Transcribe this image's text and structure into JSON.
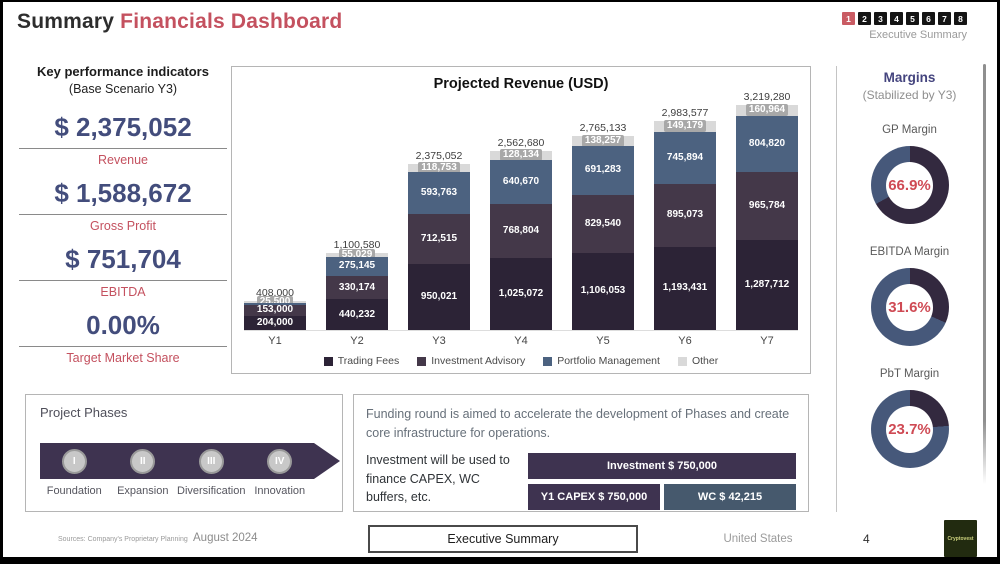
{
  "header": {
    "title_black": "Summary",
    "title_red": "Financials Dashboard",
    "pages": [
      "1",
      "2",
      "3",
      "4",
      "5",
      "6",
      "7",
      "8"
    ],
    "active_page": "1",
    "pages_caption": "Executive Summary"
  },
  "kpi": {
    "title": "Key performance indicators",
    "subtitle": "(Base Scenario Y3)",
    "items": [
      {
        "value": "$ 2,375,052",
        "label": "Revenue"
      },
      {
        "value": "$ 1,588,672",
        "label": "Gross Profit"
      },
      {
        "value": "$ 751,704",
        "label": "EBITDA"
      },
      {
        "value": "0.00%",
        "label": "Target Market Share"
      }
    ]
  },
  "chart_data": {
    "type": "bar",
    "stacked": true,
    "title": "Projected Revenue (USD)",
    "categories": [
      "Y1",
      "Y2",
      "Y3",
      "Y4",
      "Y5",
      "Y6",
      "Y7"
    ],
    "series": [
      {
        "name": "Trading Fees",
        "color": "#2c2336",
        "values": [
          204000,
          440232,
          950021,
          1025072,
          1106053,
          1193431,
          1287712
        ]
      },
      {
        "name": "Investment Advisory",
        "color": "#443849",
        "values": [
          153000,
          330174,
          712515,
          768804,
          829540,
          895073,
          965784
        ]
      },
      {
        "name": "Portfolio Management",
        "color": "#4c6280",
        "values": [
          25500,
          275145,
          593763,
          640670,
          691283,
          745894,
          804820
        ]
      },
      {
        "name": "Other",
        "color": "#d9d9d9",
        "values": [
          25500,
          55029,
          118753,
          128134,
          138257,
          149179,
          160964
        ]
      }
    ],
    "totals": [
      "408,000",
      "1,100,580",
      "2,375,052",
      "2,562,680",
      "2,765,133",
      "2,983,577",
      "3,219,280"
    ],
    "ylim": [
      0,
      3400000
    ],
    "grid": false,
    "legend_position": "bottom"
  },
  "margins": {
    "title": "Margins",
    "subtitle": "(Stabilized by Y3)",
    "fill_color": "#33293f",
    "rest_color": "#46587a",
    "items": [
      {
        "label": "GP Margin",
        "value": "66.9%",
        "pct": 66.9
      },
      {
        "label": "EBITDA Margin",
        "value": "31.6%",
        "pct": 31.6
      },
      {
        "label": "PbT Margin",
        "value": "23.7%",
        "pct": 23.7
      }
    ]
  },
  "phases": {
    "title": "Project Phases",
    "items": [
      {
        "numeral": "I",
        "label": "Foundation"
      },
      {
        "numeral": "II",
        "label": "Expansion"
      },
      {
        "numeral": "III",
        "label": "Diversification"
      },
      {
        "numeral": "IV",
        "label": "Innovation"
      }
    ]
  },
  "funding": {
    "paragraph": "Funding round is aimed to accelerate the development of Phases and create core infrastructure for operations.",
    "note": "Investment will be used to finance CAPEX, WC buffers, etc.",
    "bars": [
      {
        "label": "Investment $ 750,000"
      },
      {
        "label": "Y1 CAPEX $ 750,000"
      },
      {
        "label": "WC $ 42,215"
      }
    ]
  },
  "footer": {
    "sources": "Sources: Company's Proprietary Planning",
    "date": "August 2024",
    "button": "Executive Summary",
    "region": "United States",
    "page_number": "4",
    "logo": "Cryptovest"
  }
}
